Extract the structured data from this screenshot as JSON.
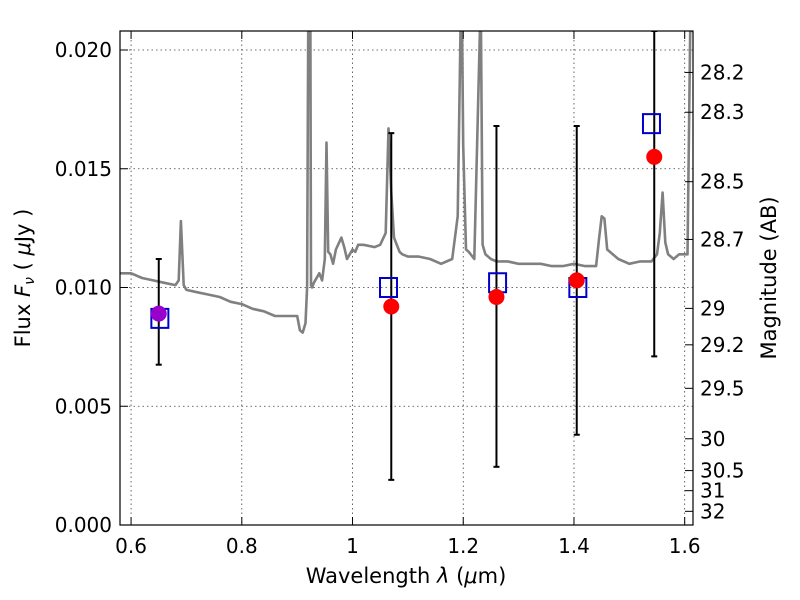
{
  "chart_data": {
    "type": "scatter",
    "title": "",
    "xlabel": {
      "prefix": "Wavelength",
      "symbol": "λ",
      "unit_open": "(",
      "unit_mu": "μ",
      "unit_rest": "m)"
    },
    "ylabel": {
      "prefix": "Flux",
      "symbol": "F",
      "sub": "ν",
      "unit_open": "(",
      "unit_mu": "μ",
      "unit_rest": "Jy )"
    },
    "y2label": "Magnitude (AB)",
    "xlim": [
      0.58,
      1.615
    ],
    "ylim": [
      0.0,
      0.0208
    ],
    "grid": true,
    "x_ticks": [
      {
        "v": 0.6,
        "label": "0.6"
      },
      {
        "v": 0.8,
        "label": "0.8"
      },
      {
        "v": 1.0,
        "label": "1"
      },
      {
        "v": 1.2,
        "label": "1.2"
      },
      {
        "v": 1.4,
        "label": "1.4"
      },
      {
        "v": 1.6,
        "label": "1.6"
      }
    ],
    "y_ticks": [
      {
        "v": 0.0,
        "label": "0.000"
      },
      {
        "v": 0.005,
        "label": "0.005"
      },
      {
        "v": 0.01,
        "label": "0.010"
      },
      {
        "v": 0.015,
        "label": "0.015"
      },
      {
        "v": 0.02,
        "label": "0.020"
      }
    ],
    "y2_ticks": [
      {
        "mag": 28.2,
        "label": "28.2"
      },
      {
        "mag": 28.3,
        "label": "28.3"
      },
      {
        "mag": 28.5,
        "label": "28.5"
      },
      {
        "mag": 28.7,
        "label": "28.7"
      },
      {
        "mag": 29.0,
        "label": "29"
      },
      {
        "mag": 29.2,
        "label": "29.2"
      },
      {
        "mag": 29.5,
        "label": "29.5"
      },
      {
        "mag": 30.0,
        "label": "30"
      },
      {
        "mag": 30.5,
        "label": "30.5"
      },
      {
        "mag": 31.0,
        "label": "31"
      },
      {
        "mag": 32.0,
        "label": "32"
      }
    ],
    "colors": {
      "model": "#808080",
      "observed": "#ff0000",
      "model_photometry": "#0000cc",
      "optical_point": "#9900cc",
      "errorbar": "#000000"
    },
    "series": [
      {
        "kind": "model_spectrum",
        "x": [
          0.58,
          0.6,
          0.62,
          0.64,
          0.66,
          0.68,
          0.686,
          0.69,
          0.695,
          0.7,
          0.72,
          0.74,
          0.76,
          0.78,
          0.8,
          0.82,
          0.84,
          0.86,
          0.88,
          0.9,
          0.905,
          0.91,
          0.915,
          0.918,
          0.92,
          0.921,
          0.924,
          0.925,
          0.927,
          0.93,
          0.94,
          0.945,
          0.95,
          0.953,
          0.956,
          0.96,
          0.965,
          0.97,
          0.98,
          0.985,
          0.99,
          1.0,
          1.005,
          1.01,
          1.02,
          1.04,
          1.05,
          1.06,
          1.065,
          1.07,
          1.075,
          1.08,
          1.085,
          1.09,
          1.1,
          1.12,
          1.14,
          1.16,
          1.18,
          1.19,
          1.195,
          1.198,
          1.2,
          1.205,
          1.21,
          1.22,
          1.23,
          1.232,
          1.235,
          1.24,
          1.25,
          1.26,
          1.28,
          1.3,
          1.32,
          1.34,
          1.36,
          1.38,
          1.4,
          1.42,
          1.44,
          1.445,
          1.45,
          1.455,
          1.46,
          1.48,
          1.5,
          1.52,
          1.54,
          1.55,
          1.555,
          1.56,
          1.565,
          1.57,
          1.58,
          1.59,
          1.6,
          1.605,
          1.61,
          1.615
        ],
        "y": [
          0.0106,
          0.0106,
          0.0104,
          0.0103,
          0.0102,
          0.0101,
          0.0103,
          0.0128,
          0.0101,
          0.0099,
          0.0098,
          0.0097,
          0.0096,
          0.0094,
          0.0093,
          0.0091,
          0.009,
          0.0088,
          0.0088,
          0.0088,
          0.0082,
          0.0081,
          0.0085,
          0.01,
          0.0208,
          0.0208,
          0.0208,
          0.0101,
          0.01,
          0.0102,
          0.0106,
          0.0103,
          0.0112,
          0.0161,
          0.0115,
          0.0114,
          0.011,
          0.0116,
          0.0121,
          0.0117,
          0.0112,
          0.0116,
          0.0115,
          0.0118,
          0.0118,
          0.0117,
          0.0118,
          0.0123,
          0.0167,
          0.014,
          0.0121,
          0.0118,
          0.0115,
          0.0114,
          0.0113,
          0.0113,
          0.0112,
          0.011,
          0.0112,
          0.013,
          0.0208,
          0.0208,
          0.016,
          0.0116,
          0.0115,
          0.0112,
          0.0208,
          0.0208,
          0.0118,
          0.0114,
          0.0112,
          0.0111,
          0.0111,
          0.011,
          0.011,
          0.011,
          0.0109,
          0.0109,
          0.011,
          0.0109,
          0.0109,
          0.012,
          0.013,
          0.0129,
          0.0116,
          0.0112,
          0.011,
          0.0111,
          0.0111,
          0.0114,
          0.0123,
          0.014,
          0.0119,
          0.0114,
          0.0112,
          0.0114,
          0.0114,
          0.0114,
          0.0208,
          0.0208
        ]
      },
      {
        "kind": "observed",
        "x": [
          0.65,
          1.07,
          1.26,
          1.405,
          1.545
        ],
        "y": [
          0.0089,
          0.0092,
          0.0096,
          0.0103,
          0.0155
        ],
        "err_low": [
          0.00675,
          0.0019,
          0.00245,
          0.0038,
          0.0071
        ],
        "err_high": [
          0.0112,
          0.0165,
          0.0168,
          0.0168,
          0.0208
        ]
      },
      {
        "kind": "model_photometry",
        "x": [
          0.652,
          1.065,
          1.262,
          1.407,
          1.54
        ],
        "y": [
          0.0087,
          0.01,
          0.0102,
          0.01,
          0.0169
        ]
      }
    ]
  }
}
